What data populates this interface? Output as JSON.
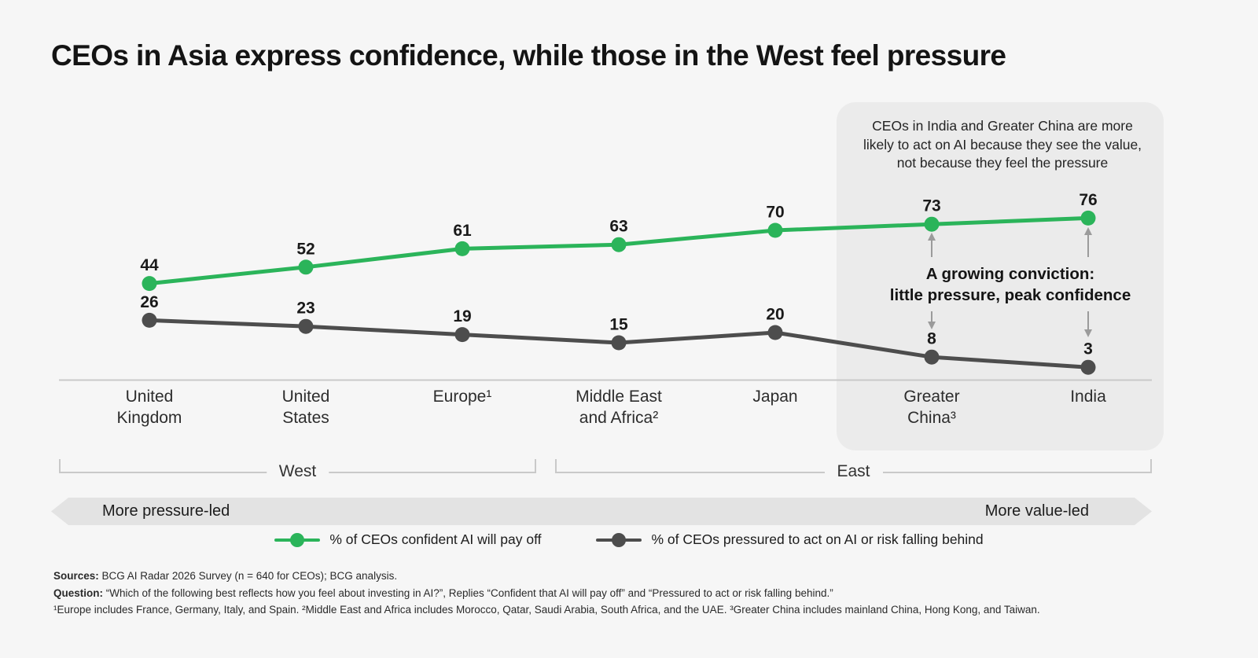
{
  "title": "CEOs in Asia express confidence, while those in the West feel pressure",
  "chart_data": {
    "type": "line",
    "categories": [
      "United\nKingdom",
      "United\nStates",
      "Europe¹",
      "Middle East\nand Africa²",
      "Japan",
      "Greater\nChina³",
      "India"
    ],
    "series": [
      {
        "name": "% of CEOs confident AI will pay off",
        "color": "#2bb45a",
        "values": [
          44,
          52,
          61,
          63,
          70,
          73,
          76
        ]
      },
      {
        "name": "% of CEOs pressured to act on AI or risk falling behind",
        "color": "#4d4d4d",
        "values": [
          26,
          23,
          19,
          15,
          20,
          8,
          3
        ]
      }
    ],
    "ylim": [
      0,
      100
    ],
    "grid": false,
    "legend_position": "bottom",
    "value_labels": true,
    "region_groups": [
      {
        "label": "West",
        "from": 0,
        "to": 2
      },
      {
        "label": "East",
        "from": 3,
        "to": 6
      }
    ],
    "axis_annotations": {
      "left": "More pressure-led",
      "right": "More value-led"
    }
  },
  "annotations": {
    "note_lines": [
      "CEOs in India and Greater China are more",
      "likely to act on AI because they see the value,",
      "not because they feel the pressure"
    ],
    "callout_lines": [
      "A growing conviction:",
      "little pressure, peak confidence"
    ]
  },
  "footnotes": {
    "sources_label": "Sources:",
    "sources_text": " BCG AI Radar 2026 Survey (n = 640 for CEOs); BCG analysis.",
    "question_label": "Question:",
    "question_text": " “Which of the following best reflects how you feel about investing in AI?”, Replies “Confident that AI will pay off” and “Pressured to act or risk falling behind.”",
    "regions_text": "¹Europe includes France, Germany, Italy, and Spain. ²Middle East and Africa includes Morocco, Qatar, Saudi Arabia, South Africa, and the UAE. ³Greater China includes mainland China, Hong Kong, and Taiwan."
  },
  "colors": {
    "background": "#f6f6f6",
    "highlight_box": "#ebebeb",
    "axis_line": "#c9c9c9",
    "confident_green": "#2bb45a",
    "pressured_gray": "#4d4d4d",
    "annotation_arrow": "#9b9b9b",
    "band_background": "#e3e3e3"
  }
}
